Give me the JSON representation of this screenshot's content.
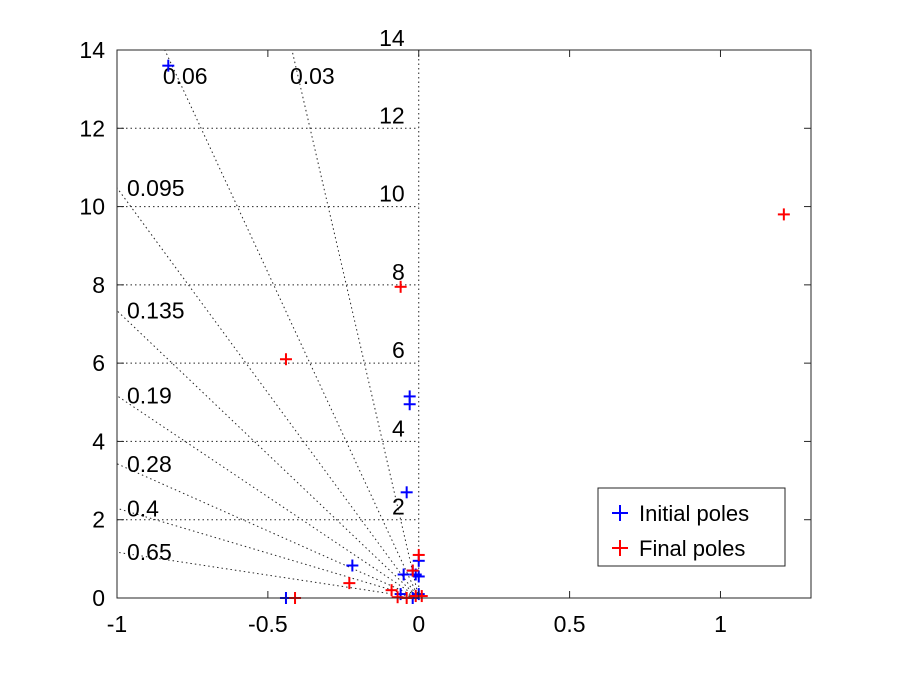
{
  "chart_data": {
    "type": "scatter",
    "title": "",
    "xlabel": "",
    "ylabel": "",
    "xlim": [
      -1,
      1.3
    ],
    "ylim": [
      0,
      14
    ],
    "xticks": [
      -1,
      -0.5,
      0,
      0.5,
      1
    ],
    "xtick_labels": [
      "-1",
      "-0.5",
      "0",
      "0.5",
      "1"
    ],
    "yticks": [
      0,
      2,
      4,
      6,
      8,
      10,
      12,
      14
    ],
    "ytick_labels": [
      "0",
      "2",
      "4",
      "6",
      "8",
      "10",
      "12",
      "14"
    ],
    "grid_type": "s-plane",
    "damping_lines": [
      {
        "zeta": 0.03,
        "label": "0.03"
      },
      {
        "zeta": 0.06,
        "label": "0.06"
      },
      {
        "zeta": 0.095,
        "label": "0.095"
      },
      {
        "zeta": 0.135,
        "label": "0.135"
      },
      {
        "zeta": 0.19,
        "label": "0.19"
      },
      {
        "zeta": 0.28,
        "label": "0.28"
      },
      {
        "zeta": 0.4,
        "label": "0.4"
      },
      {
        "zeta": 0.65,
        "label": "0.65"
      }
    ],
    "frequency_labels": [
      {
        "wn": 14,
        "label": "14"
      },
      {
        "wn": 12,
        "label": "12"
      },
      {
        "wn": 10,
        "label": "10"
      },
      {
        "wn": 8,
        "label": "8"
      },
      {
        "wn": 6,
        "label": "6"
      },
      {
        "wn": 4,
        "label": "4"
      },
      {
        "wn": 2,
        "label": "2"
      }
    ],
    "series": [
      {
        "name": "Initial poles",
        "color": "#0000ff",
        "marker": "plus",
        "points": [
          [
            -0.83,
            13.6
          ],
          [
            -0.44,
            0.0
          ],
          [
            -0.22,
            0.83
          ],
          [
            -0.05,
            0.6
          ],
          [
            -0.03,
            5.15
          ],
          [
            -0.03,
            4.95
          ],
          [
            -0.04,
            2.7
          ],
          [
            0.0,
            0.95
          ],
          [
            0.0,
            0.55
          ],
          [
            -0.01,
            0.6
          ],
          [
            -0.02,
            0.7
          ],
          [
            -0.06,
            0.1
          ],
          [
            0.0,
            0.1
          ],
          [
            -0.02,
            0.0
          ]
        ]
      },
      {
        "name": "Final poles",
        "color": "#ff0000",
        "marker": "plus",
        "points": [
          [
            1.21,
            9.8
          ],
          [
            -0.44,
            6.1
          ],
          [
            -0.06,
            7.95
          ],
          [
            -0.41,
            0.0
          ],
          [
            -0.23,
            0.38
          ],
          [
            -0.09,
            0.2
          ],
          [
            -0.07,
            0.02
          ],
          [
            -0.04,
            0.0
          ],
          [
            -0.02,
            0.7
          ],
          [
            0.0,
            1.1
          ],
          [
            0.01,
            0.05
          ],
          [
            -0.01,
            0.05
          ]
        ]
      }
    ],
    "legend": {
      "position": "bottom-right",
      "entries": [
        "Initial poles",
        "Final poles"
      ]
    }
  }
}
